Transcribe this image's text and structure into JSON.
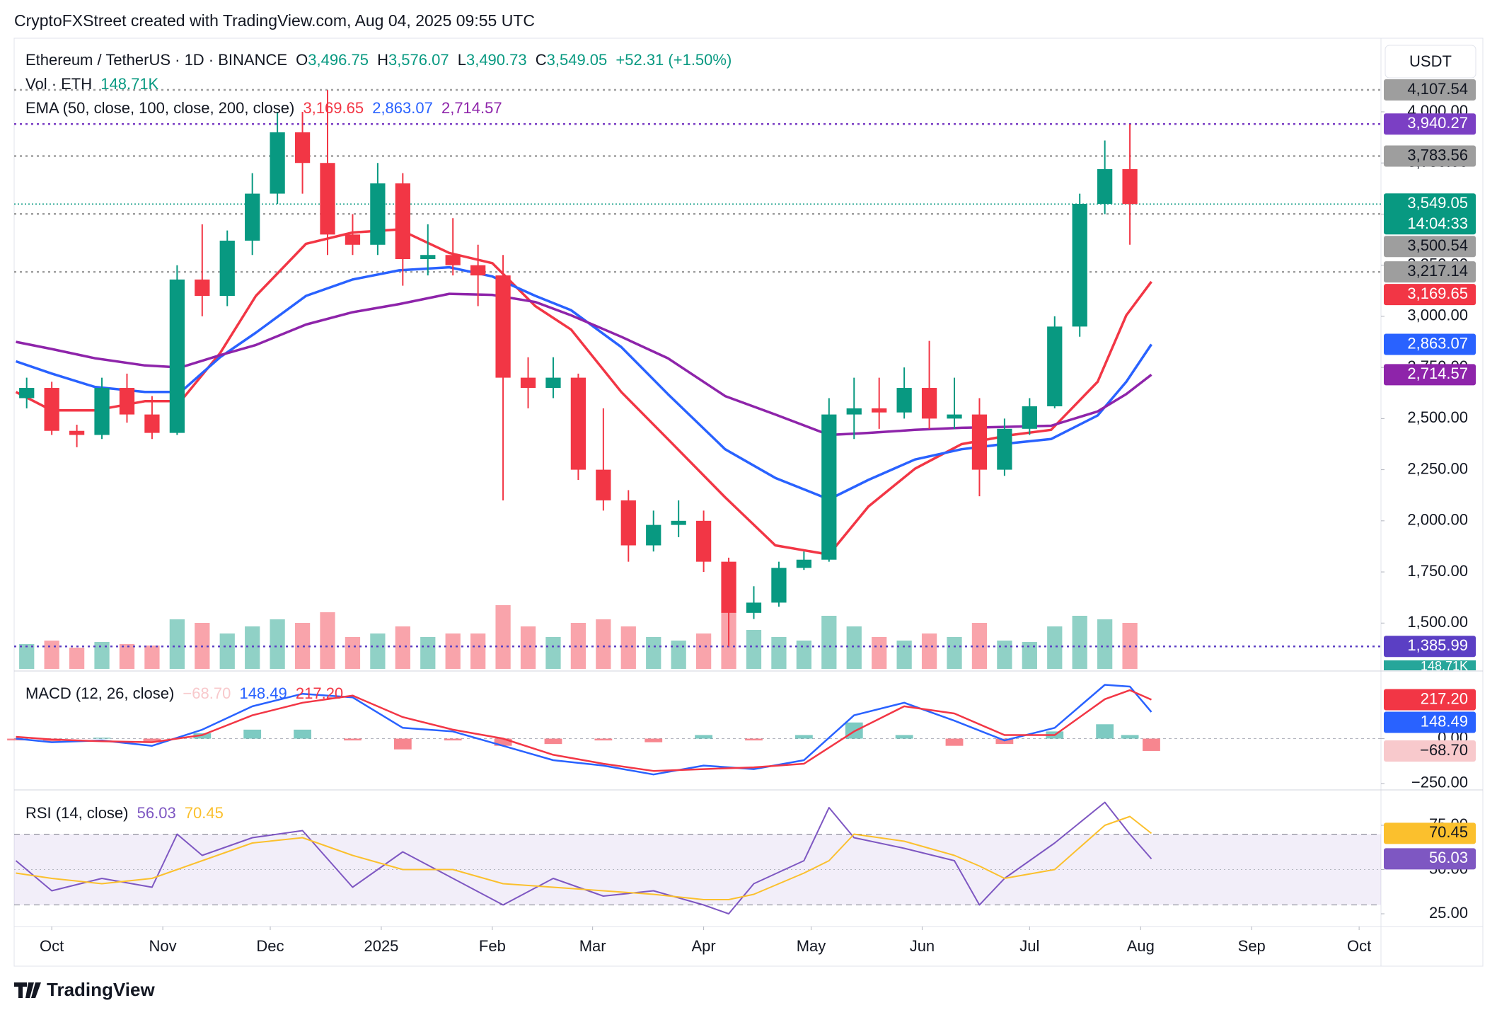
{
  "header": {
    "credit": "CryptoFXStreet created with TradingView.com, Aug 04, 2025 09:55 UTC",
    "symbol": "Ethereum / TetherUS · 1D · BINANCE",
    "ohlc": [
      {
        "key": "O",
        "value": "3,496.75"
      },
      {
        "key": "H",
        "value": "3,576.07"
      },
      {
        "key": "L",
        "value": "3,490.73"
      },
      {
        "key": "C",
        "value": "3,549.05"
      }
    ],
    "change": "+52.31 (+1.50%)",
    "vol_label": "Vol · ETH",
    "ema_label": "EMA (50, close, 100, close, 200, close)",
    "currency": "USDT"
  },
  "chart_data": [
    {
      "type": "candlestick",
      "up_color": "#089981",
      "down_color": "#f23645",
      "x": [
        -7,
        0,
        7,
        14,
        21,
        28,
        35,
        42,
        49,
        56,
        63,
        70,
        77,
        84,
        91,
        98,
        105,
        112,
        119,
        126,
        133,
        140,
        147,
        154,
        161,
        168,
        175,
        182,
        189,
        196,
        203,
        210,
        217,
        224,
        231,
        238,
        245,
        252,
        259,
        266,
        273,
        280,
        287,
        294,
        301
      ],
      "open": [
        2600,
        2650,
        2440,
        2420,
        2650,
        2520,
        2430,
        3180,
        3100,
        3370,
        3600,
        3900,
        3750,
        3400,
        3350,
        3650,
        3280,
        3300,
        3250,
        3200,
        2700,
        2650,
        2700,
        2250,
        2100,
        1880,
        1980,
        2000,
        1800,
        1550,
        1600,
        1770,
        1810,
        2520,
        2550,
        2530,
        2650,
        2500,
        2520,
        2250,
        2450,
        2560,
        2950,
        3550,
        3720
      ],
      "high": [
        2700,
        2680,
        2470,
        2700,
        2720,
        2610,
        3250,
        3450,
        3420,
        3700,
        4000,
        4000,
        4107,
        3500,
        3750,
        3700,
        3450,
        3480,
        3350,
        3300,
        2800,
        2800,
        2720,
        2550,
        2150,
        2050,
        2100,
        2050,
        1820,
        1680,
        1800,
        1850,
        2600,
        2700,
        2700,
        2750,
        2880,
        2700,
        2600,
        2500,
        2600,
        3000,
        3600,
        3860,
        3940
      ],
      "low": [
        2550,
        2420,
        2360,
        2400,
        2480,
        2400,
        2420,
        3000,
        3050,
        3300,
        3550,
        3600,
        3300,
        3300,
        3300,
        3150,
        3200,
        3200,
        3050,
        2100,
        2550,
        2600,
        2200,
        2050,
        1800,
        1850,
        1920,
        1750,
        1386,
        1520,
        1580,
        1760,
        1800,
        2400,
        2450,
        2500,
        2450,
        2450,
        2120,
        2220,
        2420,
        2550,
        2900,
        3500,
        3350
      ],
      "close": [
        2650,
        2440,
        2420,
        2650,
        2520,
        2430,
        3180,
        3100,
        3370,
        3600,
        3900,
        3750,
        3400,
        3350,
        3650,
        3280,
        3300,
        3250,
        3200,
        2700,
        2650,
        2700,
        2250,
        2100,
        1880,
        1980,
        2000,
        1800,
        1550,
        1600,
        1770,
        1810,
        2520,
        2550,
        2530,
        2650,
        2500,
        2520,
        2250,
        2450,
        2560,
        2950,
        3550,
        3720,
        3549
      ],
      "volume": {
        "values": [
          350,
          400,
          300,
          380,
          350,
          330,
          700,
          650,
          500,
          600,
          700,
          650,
          800,
          450,
          500,
          600,
          450,
          500,
          500,
          900,
          600,
          450,
          650,
          700,
          600,
          450,
          400,
          500,
          800,
          550,
          450,
          400,
          750,
          600,
          450,
          400,
          500,
          450,
          650,
          400,
          380,
          600,
          750,
          700,
          650
        ],
        "value_label": "148.71K",
        "color": "#26a69a"
      },
      "series": [
        {
          "color": "#f23645",
          "value_label": "3,169.65",
          "x": [
            -10,
            0,
            12,
            26,
            36,
            47,
            57,
            71,
            84,
            97,
            111,
            123,
            135,
            145,
            159,
            172,
            188,
            202,
            217,
            228,
            241,
            254,
            268,
            279,
            292,
            300,
            307
          ],
          "values": [
            2630,
            2540,
            2540,
            2585,
            2585,
            2820,
            3100,
            3355,
            3410,
            3425,
            3310,
            3260,
            3050,
            2935,
            2630,
            2400,
            2115,
            1880,
            1835,
            2070,
            2255,
            2375,
            2420,
            2445,
            2680,
            3005,
            3169.65
          ]
        },
        {
          "color": "#2962ff",
          "value_label": "2,863.07",
          "x": [
            -10,
            0,
            12,
            26,
            36,
            47,
            57,
            71,
            84,
            97,
            111,
            123,
            135,
            145,
            159,
            172,
            188,
            202,
            217,
            228,
            241,
            254,
            268,
            279,
            292,
            300,
            307
          ],
          "values": [
            2780,
            2720,
            2655,
            2630,
            2630,
            2800,
            2920,
            3100,
            3180,
            3225,
            3240,
            3195,
            3100,
            3030,
            2850,
            2620,
            2350,
            2210,
            2105,
            2200,
            2300,
            2350,
            2380,
            2400,
            2515,
            2680,
            2863.07
          ]
        },
        {
          "color": "#8e24aa",
          "value_label": "2,714.57",
          "x": [
            -10,
            0,
            12,
            26,
            36,
            47,
            57,
            71,
            84,
            97,
            111,
            123,
            135,
            145,
            159,
            172,
            188,
            202,
            217,
            228,
            241,
            254,
            268,
            279,
            292,
            300,
            307
          ],
          "values": [
            2875,
            2840,
            2795,
            2760,
            2750,
            2810,
            2860,
            2960,
            3020,
            3060,
            3110,
            3105,
            3070,
            3005,
            2900,
            2795,
            2610,
            2520,
            2420,
            2430,
            2445,
            2455,
            2460,
            2465,
            2535,
            2620,
            2714.57
          ]
        }
      ],
      "current": {
        "value": 3549.05,
        "label": "3,549.05",
        "countdown": "14:04:33",
        "color": "#089981"
      },
      "levels": [
        {
          "value": 4107.54,
          "label": "4,107.54",
          "color": "#9e9e9e",
          "text_color": "#131722"
        },
        {
          "value": 3940.27,
          "label": "3,940.27",
          "color": "#7b3fc4",
          "text_color": "#ffffff"
        },
        {
          "value": 3783.56,
          "label": "3,783.56",
          "color": "#9e9e9e",
          "text_color": "#131722"
        },
        {
          "value": 3500.54,
          "label": "3,500.54",
          "color": "#9e9e9e",
          "text_color": "#131722"
        },
        {
          "value": 3217.14,
          "label": "3,217.14",
          "color": "#9e9e9e",
          "text_color": "#131722"
        },
        {
          "value": 1385.99,
          "label": "1,385.99",
          "color": "#5b3fc4",
          "text_color": "#ffffff"
        }
      ],
      "xlim": [
        -10.5,
        371.1
      ],
      "xticks": [
        {
          "value": 0,
          "label": "Oct"
        },
        {
          "value": 31,
          "label": "Nov"
        },
        {
          "value": 61,
          "label": "Dec"
        },
        {
          "value": 92,
          "label": "2025"
        },
        {
          "value": 123,
          "label": "Feb"
        },
        {
          "value": 151,
          "label": "Mar"
        },
        {
          "value": 182,
          "label": "Apr"
        },
        {
          "value": 212,
          "label": "May"
        },
        {
          "value": 243,
          "label": "Jun"
        },
        {
          "value": 273,
          "label": "Jul"
        },
        {
          "value": 304,
          "label": "Aug"
        },
        {
          "value": 335,
          "label": "Sep"
        },
        {
          "value": 365,
          "label": "Oct"
        }
      ],
      "ylim": [
        1276,
        4360
      ],
      "yticks": [
        {
          "value": 1500,
          "label": "1,500.00"
        },
        {
          "value": 1750,
          "label": "1,750.00"
        },
        {
          "value": 2000,
          "label": "2,000.00"
        },
        {
          "value": 2250,
          "label": "2,250.00"
        },
        {
          "value": 2500,
          "label": "2,500.00"
        },
        {
          "value": 2750,
          "label": "2,750.00"
        },
        {
          "value": 3000,
          "label": "3,000.00"
        },
        {
          "value": 3250,
          "label": "3,250.00"
        },
        {
          "value": 3500,
          "label": "3,500.00"
        },
        {
          "value": 3750,
          "label": "3,750.00"
        },
        {
          "value": 4000,
          "label": "4,000.00"
        }
      ]
    },
    {
      "type": "macd",
      "title": "MACD (12, 26, close)",
      "x": [
        -10,
        0,
        14,
        28,
        42,
        56,
        70,
        84,
        98,
        112,
        126,
        140,
        154,
        168,
        182,
        196,
        210,
        224,
        238,
        252,
        266,
        280,
        294,
        301,
        307
      ],
      "histogram": {
        "values": [
          -10,
          -15,
          5,
          -20,
          30,
          50,
          50,
          -10,
          -60,
          -10,
          -40,
          -30,
          -10,
          -20,
          20,
          -10,
          20,
          90,
          20,
          -40,
          -30,
          40,
          80,
          20,
          -68.7
        ],
        "value_label": "−68.70",
        "up_color": "#26a69a",
        "down_color": "#f23645",
        "box_color": "#f8c9cc"
      },
      "series": [
        {
          "color": "#2962ff",
          "value_label": "148.49",
          "values": [
            0,
            -20,
            -10,
            -40,
            50,
            180,
            250,
            230,
            60,
            40,
            -40,
            -120,
            -150,
            -200,
            -150,
            -170,
            -120,
            130,
            200,
            100,
            -10,
            60,
            300,
            290,
            148.49
          ]
        },
        {
          "color": "#f23645",
          "value_label": "217.20",
          "values": [
            10,
            -5,
            -15,
            -20,
            20,
            130,
            200,
            240,
            120,
            50,
            0,
            -90,
            -140,
            -180,
            -170,
            -160,
            -140,
            40,
            180,
            140,
            20,
            20,
            220,
            270,
            217.2
          ]
        }
      ],
      "xlim": [
        -10.5,
        371.1
      ],
      "ylim": [
        -274,
        365
      ],
      "yticks": [
        {
          "value": 0,
          "label": "0.00"
        },
        {
          "value": -250,
          "label": "−250.00"
        }
      ]
    },
    {
      "type": "rsi",
      "title": "RSI (14, close)",
      "x": [
        -10,
        0,
        14,
        28,
        35,
        42,
        56,
        70,
        84,
        98,
        112,
        126,
        140,
        154,
        168,
        182,
        189,
        196,
        210,
        217,
        224,
        238,
        252,
        259,
        266,
        280,
        294,
        301,
        307
      ],
      "series": [
        {
          "color": "#7e57c2",
          "value_label": "56.03",
          "values": [
            55,
            38,
            45,
            40,
            70,
            58,
            68,
            72,
            40,
            60,
            45,
            30,
            45,
            35,
            38,
            30,
            25,
            42,
            55,
            85,
            68,
            62,
            55,
            30,
            45,
            65,
            88,
            70,
            56.03
          ]
        },
        {
          "color": "#fbc02d",
          "value_label": "70.45",
          "values": [
            48,
            45,
            42,
            45,
            50,
            55,
            65,
            68,
            58,
            50,
            50,
            42,
            40,
            38,
            36,
            33,
            33,
            36,
            48,
            55,
            70,
            66,
            58,
            52,
            45,
            50,
            75,
            80,
            70.45
          ]
        }
      ],
      "band": [
        30,
        70
      ],
      "midline": 50,
      "band_color": "#7e57c2",
      "xlim": [
        -10.5,
        371.1
      ],
      "ylim": [
        17.8,
        94.2
      ],
      "yticks": [
        {
          "value": 25,
          "label": "25.00"
        },
        {
          "value": 50,
          "label": "50.00"
        },
        {
          "value": 75,
          "label": "75.00"
        }
      ]
    }
  ],
  "footer": {
    "brand": "TradingView"
  }
}
